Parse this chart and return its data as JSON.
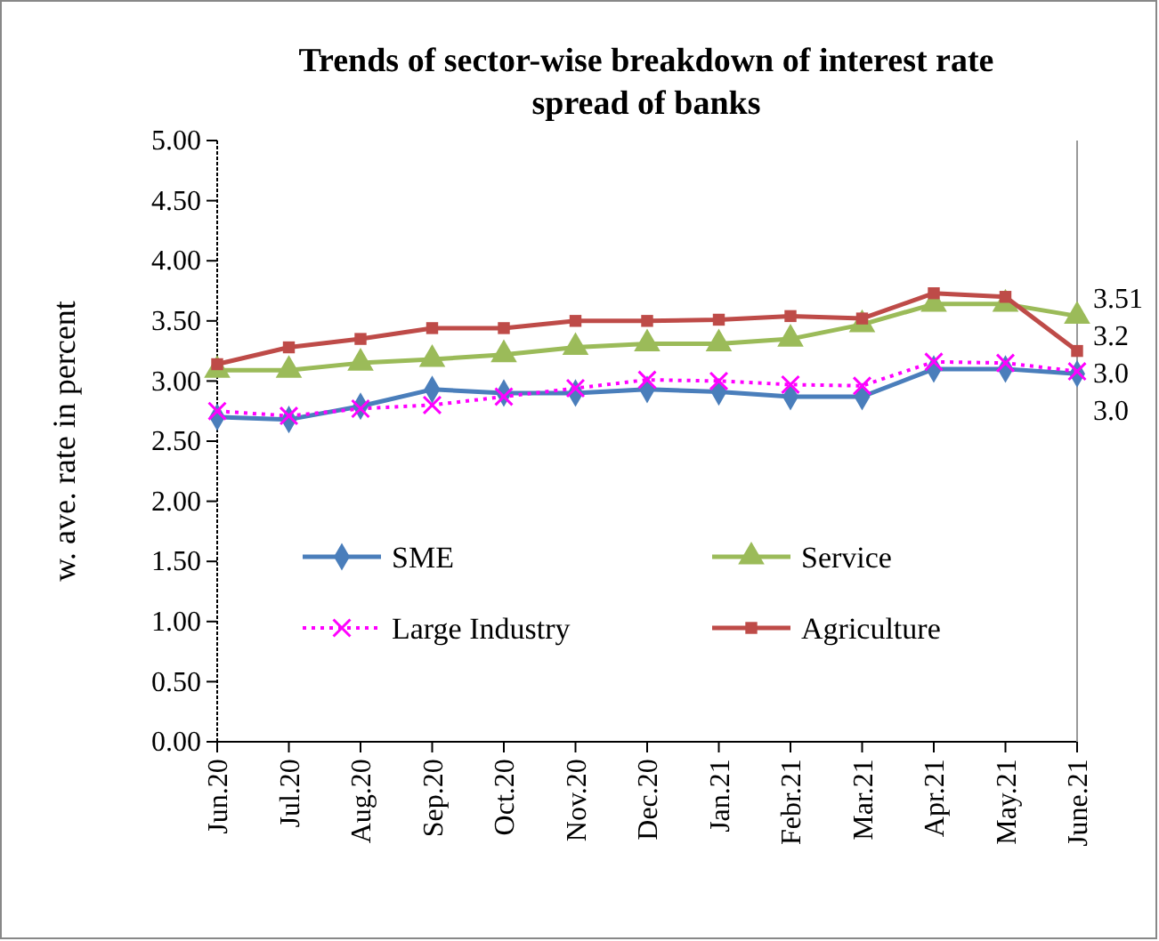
{
  "chart_data": {
    "type": "line",
    "title": "Trends of sector-wise  breakdown of interest rate spread of banks",
    "ylabel": "w. ave. rate in percent",
    "categories": [
      "Jun.20",
      "Jul.20",
      "Aug.20",
      "Sep.20",
      "Oct.20",
      "Nov.20",
      "Dec.20",
      "Jan.21",
      "Febr.21",
      "Mar.21",
      "Apr.21",
      "May.21",
      "June.21"
    ],
    "series": [
      {
        "name": "SME",
        "color": "#4a7ebb",
        "marker": "diamond",
        "line_style": "solid",
        "values": [
          2.7,
          2.68,
          2.79,
          2.93,
          2.9,
          2.9,
          2.93,
          2.91,
          2.87,
          2.87,
          3.1,
          3.1,
          3.06
        ]
      },
      {
        "name": "Service",
        "color": "#9bbb59",
        "marker": "triangle",
        "line_style": "solid",
        "values": [
          3.09,
          3.09,
          3.15,
          3.18,
          3.22,
          3.28,
          3.31,
          3.31,
          3.35,
          3.47,
          3.64,
          3.64,
          3.54
        ]
      },
      {
        "name": "Large Industry",
        "color": "#ff00ff",
        "marker": "cross",
        "line_style": "dotted",
        "values": [
          2.75,
          2.71,
          2.77,
          2.8,
          2.87,
          2.94,
          3.01,
          3.0,
          2.97,
          2.96,
          3.16,
          3.15,
          3.08
        ]
      },
      {
        "name": "Agriculture",
        "color": "#be4b48",
        "marker": "square",
        "line_style": "solid",
        "values": [
          3.14,
          3.28,
          3.35,
          3.44,
          3.44,
          3.5,
          3.5,
          3.51,
          3.54,
          3.52,
          3.73,
          3.7,
          3.25
        ]
      }
    ],
    "annotations": [
      "3.51",
      "3.2",
      "3.0",
      "3.0"
    ],
    "ylim": [
      0,
      5
    ],
    "yticks": [
      {
        "value": 0,
        "label": "0.00"
      },
      {
        "value": 0.5,
        "label": "0.50"
      },
      {
        "value": 1,
        "label": "1.00"
      },
      {
        "value": 1.5,
        "label": "1.50"
      },
      {
        "value": 2,
        "label": "2.00"
      },
      {
        "value": 2.5,
        "label": "2.50"
      },
      {
        "value": 3,
        "label": "3.00"
      },
      {
        "value": 3.5,
        "label": "3.50"
      },
      {
        "value": 4,
        "label": "4.00"
      },
      {
        "value": 4.5,
        "label": "4.50"
      },
      {
        "value": 5,
        "label": "5.00"
      }
    ],
    "legend": "bottom",
    "grid": false
  }
}
